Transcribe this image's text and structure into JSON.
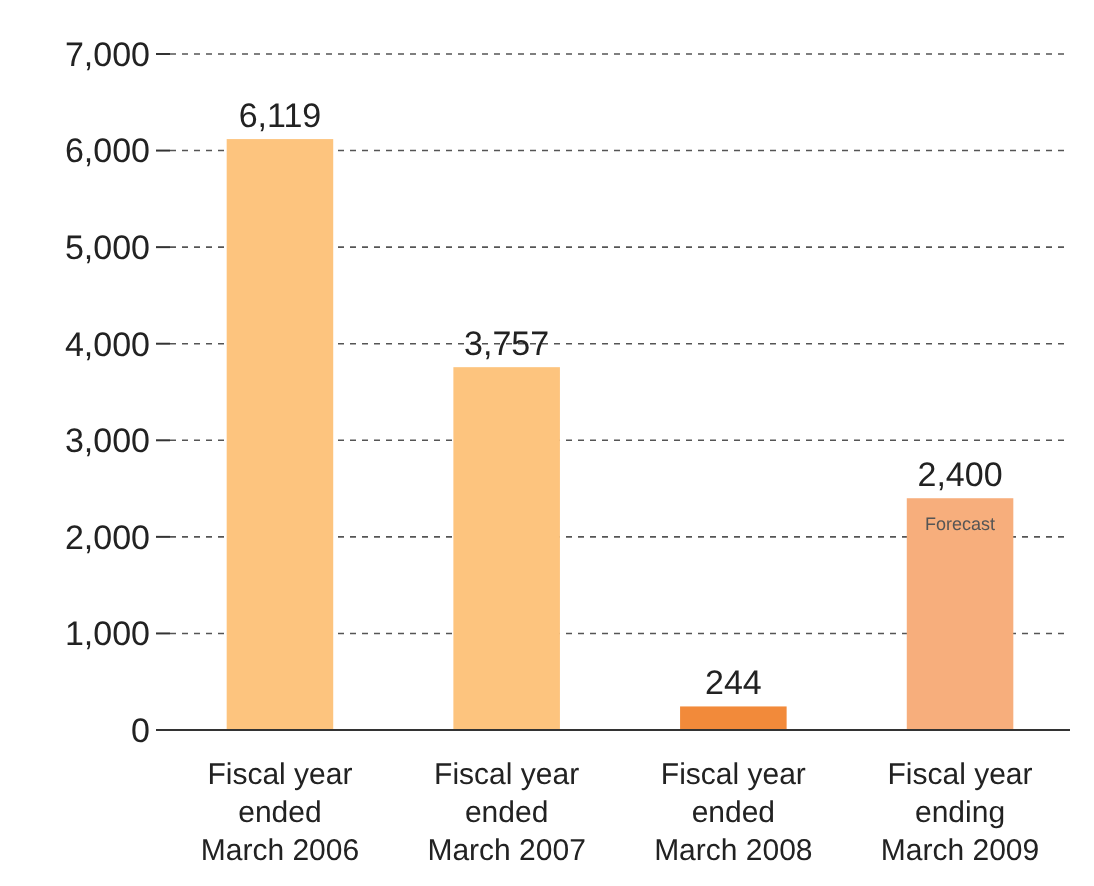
{
  "chart_data": {
    "type": "bar",
    "categories": [
      "Fiscal year\nended\nMarch 2006",
      "Fiscal year\nended\nMarch 2007",
      "Fiscal year\nended\nMarch 2008",
      "Fiscal year\nending\nMarch 2009"
    ],
    "values": [
      6119,
      3757,
      244,
      2400
    ],
    "colors": [
      "#fdc47e",
      "#fdc47e",
      "#f28a3a",
      "#f7ae7c"
    ],
    "value_labels": [
      "6,119",
      "3,757",
      "244",
      "2,400"
    ],
    "ylim": [
      0,
      7000
    ],
    "yticks": [
      {
        "value": 0,
        "label": "0"
      },
      {
        "value": 1000,
        "label": "1,000"
      },
      {
        "value": 2000,
        "label": "2,000"
      },
      {
        "value": 3000,
        "label": "3,000"
      },
      {
        "value": 4000,
        "label": "4,000"
      },
      {
        "value": 5000,
        "label": "5,000"
      },
      {
        "value": 6000,
        "label": "6,000"
      },
      {
        "value": 7000,
        "label": "7,000"
      }
    ],
    "grid": "y",
    "annotations": [
      {
        "text": "Forecast",
        "x": "Fiscal year\nending\nMarch 2009",
        "y": 2400
      }
    ]
  }
}
